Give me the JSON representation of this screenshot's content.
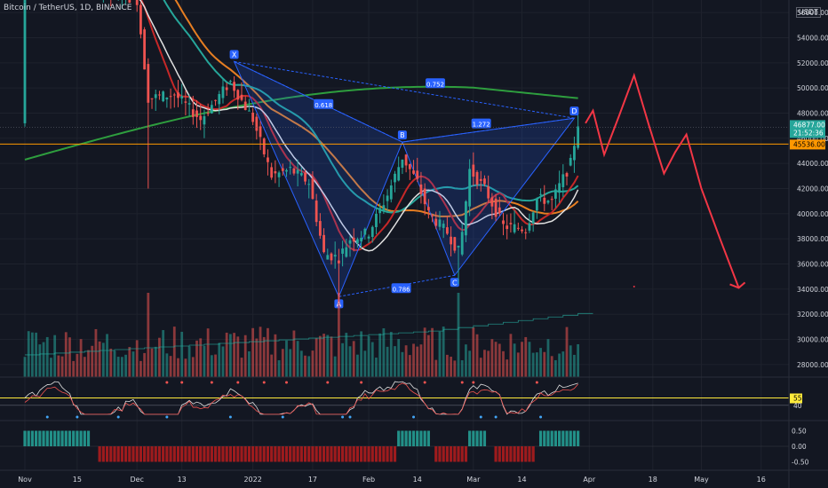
{
  "chart_data": {
    "type": "candlestick",
    "title": "Bitcoin / TetherUS, 1D, BINANCE",
    "currency": "USDT",
    "x_tick_labels": [
      "Nov",
      "15",
      "Dec",
      "13",
      "2022",
      "17",
      "Feb",
      "14",
      "Mar",
      "14",
      "Apr",
      "18",
      "May",
      "16"
    ],
    "y_tick_labels": [
      "28000.00",
      "30000.00",
      "32000.00",
      "34000.00",
      "36000.00",
      "38000.00",
      "40000.00",
      "42000.00",
      "44000.00",
      "46000.00",
      "48000.00",
      "50000.00",
      "52000.00",
      "54000.00",
      "56000.00"
    ],
    "y_range": [
      27000,
      57000
    ],
    "last_price": {
      "value": "46877.00",
      "countdown": "21:52:36"
    },
    "horizontal_level": {
      "value": "45536.00",
      "color": "#ff9800"
    },
    "harmonic_pattern": {
      "points": [
        {
          "label": "X",
          "date": "2021-12-27",
          "price": 52100
        },
        {
          "label": "A",
          "date": "2022-01-24",
          "price": 33400
        },
        {
          "label": "B",
          "date": "2022-02-10",
          "price": 45700
        },
        {
          "label": "C",
          "date": "2022-02-24",
          "price": 35100
        },
        {
          "label": "D",
          "date": "2022-03-28",
          "price": 47600
        }
      ],
      "ratios": [
        "0.618",
        "0.752",
        "0.786",
        "1.272"
      ]
    },
    "projection_path_color": "#f23645",
    "oscillator_level_labels": [
      "55",
      "40"
    ],
    "histogram_tick_labels": [
      "0.50",
      "0.00",
      "-0.50"
    ]
  }
}
